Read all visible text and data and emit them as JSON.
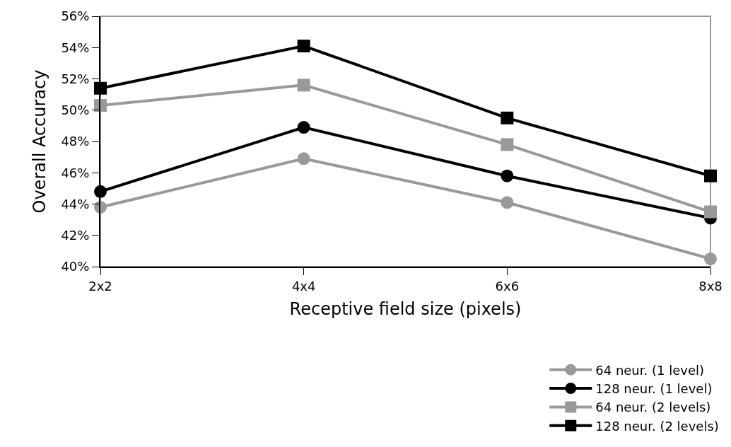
{
  "chart_data": {
    "type": "line",
    "xlabel": "Receptive field size (pixels)",
    "ylabel": "Overall Accuracy",
    "categories": [
      "2x2",
      "4x4",
      "6x6",
      "8x8"
    ],
    "series": [
      {
        "name": "64 neur. (1 level)",
        "color": "#999999",
        "marker": "circle",
        "values": [
          43.8,
          46.9,
          44.1,
          40.5
        ]
      },
      {
        "name": "128 neur. (1 level)",
        "color": "#000000",
        "marker": "circle",
        "values": [
          44.8,
          48.9,
          45.8,
          43.1
        ]
      },
      {
        "name": "64 neur. (2 levels)",
        "color": "#999999",
        "marker": "square",
        "values": [
          50.3,
          51.6,
          47.8,
          43.5
        ]
      },
      {
        "name": "128 neur. (2 levels)",
        "color": "#000000",
        "marker": "square",
        "values": [
          51.4,
          54.1,
          49.5,
          45.8
        ]
      }
    ],
    "ylim": [
      40,
      56
    ],
    "yticks": [
      {
        "value": 40,
        "label": "40%"
      },
      {
        "value": 42,
        "label": "42%"
      },
      {
        "value": 44,
        "label": "44%"
      },
      {
        "value": 46,
        "label": "46%"
      },
      {
        "value": 48,
        "label": "48%"
      },
      {
        "value": 50,
        "label": "50%"
      },
      {
        "value": 52,
        "label": "52%"
      },
      {
        "value": 54,
        "label": "54%"
      },
      {
        "value": 56,
        "label": "56%"
      }
    ],
    "grid": false,
    "legend": "bottom right",
    "line_style": "solid"
  }
}
